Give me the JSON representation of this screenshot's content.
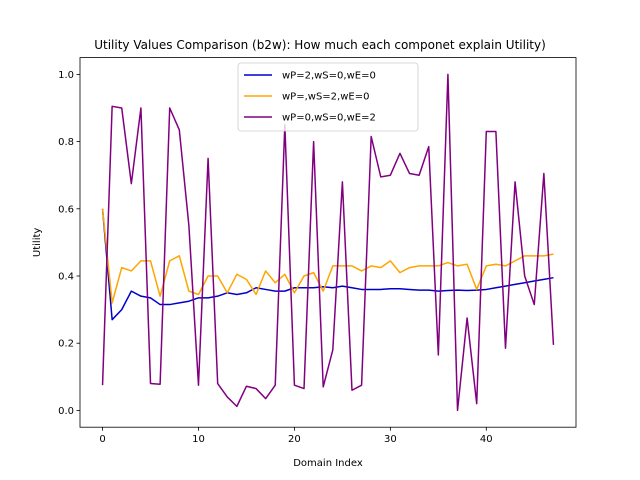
{
  "chart_data": {
    "type": "line",
    "title": "Utility Values Comparison (b2w): How much each componet explain Utility)",
    "xlabel": "Domain Index",
    "ylabel": "Utility",
    "xlim": [
      -2.35,
      49.35
    ],
    "ylim": [
      -0.05,
      1.05
    ],
    "xticks": [
      0,
      10,
      20,
      30,
      40
    ],
    "yticks": [
      0.0,
      0.2,
      0.4,
      0.6,
      0.8,
      1.0
    ],
    "xtick_labels": [
      "0",
      "10",
      "20",
      "30",
      "40"
    ],
    "ytick_labels": [
      "0.0",
      "0.2",
      "0.4",
      "0.6",
      "0.8",
      "1.0"
    ],
    "grid": false,
    "legend_position": "top-center",
    "x": [
      0,
      1,
      2,
      3,
      4,
      5,
      6,
      7,
      8,
      9,
      10,
      11,
      12,
      13,
      14,
      15,
      16,
      17,
      18,
      19,
      20,
      21,
      22,
      23,
      24,
      25,
      26,
      27,
      28,
      29,
      30,
      31,
      32,
      33,
      34,
      35,
      36,
      37,
      38,
      39,
      40,
      41,
      42,
      43,
      44,
      45,
      46,
      47
    ],
    "series": [
      {
        "name": "wP=2,wS=0,wE=0",
        "color": "#0000cc",
        "values": [
          0.6,
          0.27,
          0.3,
          0.355,
          0.34,
          0.335,
          0.315,
          0.315,
          0.32,
          0.325,
          0.335,
          0.335,
          0.34,
          0.35,
          0.345,
          0.35,
          0.365,
          0.36,
          0.355,
          0.355,
          0.365,
          0.365,
          0.365,
          0.368,
          0.365,
          0.37,
          0.365,
          0.36,
          0.36,
          0.36,
          0.362,
          0.362,
          0.36,
          0.358,
          0.358,
          0.355,
          0.357,
          0.358,
          0.357,
          0.358,
          0.36,
          0.365,
          0.37,
          0.375,
          0.38,
          0.385,
          0.39,
          0.395
        ]
      },
      {
        "name": "wP=,wS=2,wE=0",
        "color": "#ffa500",
        "values": [
          0.6,
          0.32,
          0.425,
          0.415,
          0.445,
          0.445,
          0.34,
          0.445,
          0.46,
          0.355,
          0.345,
          0.4,
          0.4,
          0.35,
          0.405,
          0.39,
          0.345,
          0.415,
          0.38,
          0.405,
          0.35,
          0.4,
          0.41,
          0.355,
          0.43,
          0.43,
          0.43,
          0.415,
          0.43,
          0.425,
          0.445,
          0.41,
          0.425,
          0.43,
          0.43,
          0.43,
          0.44,
          0.43,
          0.435,
          0.36,
          0.43,
          0.435,
          0.43,
          0.445,
          0.46,
          0.46,
          0.46,
          0.465
        ]
      },
      {
        "name": "wP=0,wS=0,wE=2",
        "color": "#800080",
        "values": [
          0.075,
          0.905,
          0.9,
          0.675,
          0.9,
          0.08,
          0.078,
          0.9,
          0.835,
          0.55,
          0.075,
          0.75,
          0.08,
          0.04,
          0.012,
          0.072,
          0.065,
          0.035,
          0.075,
          0.85,
          0.075,
          0.065,
          0.8,
          0.07,
          0.18,
          0.68,
          0.06,
          0.075,
          0.815,
          0.695,
          0.7,
          0.765,
          0.705,
          0.7,
          0.785,
          0.165,
          1.0,
          0.0,
          0.275,
          0.02,
          0.83,
          0.83,
          0.185,
          0.68,
          0.4,
          0.315,
          0.705,
          0.195
        ]
      }
    ]
  }
}
